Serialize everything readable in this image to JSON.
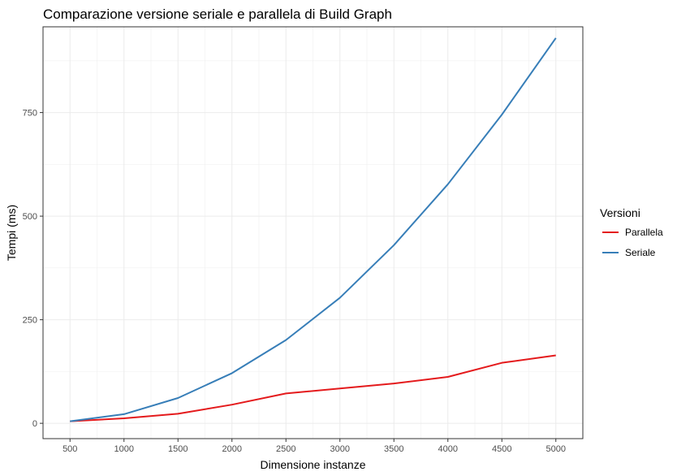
{
  "chart_data": {
    "type": "line",
    "title": "Comparazione versione seriale e parallela di Build Graph",
    "xlabel": "Dimensione instanze",
    "ylabel": "Tempi (ms)",
    "x": [
      500,
      1000,
      1500,
      2000,
      2500,
      3000,
      3500,
      4000,
      4500,
      5000
    ],
    "xticks": [
      "500",
      "1000",
      "1500",
      "2000",
      "2500",
      "3000",
      "3500",
      "4000",
      "4500",
      "5000"
    ],
    "yticks": [
      "0",
      "250",
      "500",
      "750"
    ],
    "ytick_values": [
      0,
      250,
      500,
      750
    ],
    "xlim": [
      250,
      5250
    ],
    "ylim": [
      -37,
      957
    ],
    "grid": true,
    "legend": {
      "title": "Versioni",
      "placement": "right"
    },
    "series": [
      {
        "name": "Parallela",
        "color": "#e41a1c",
        "values": [
          5,
          12,
          23,
          45,
          72,
          84,
          96,
          112,
          146,
          164
        ]
      },
      {
        "name": "Seriale",
        "color": "#377eb8",
        "values": [
          5,
          22,
          61,
          121,
          201,
          303,
          430,
          577,
          745,
          930
        ]
      }
    ]
  }
}
